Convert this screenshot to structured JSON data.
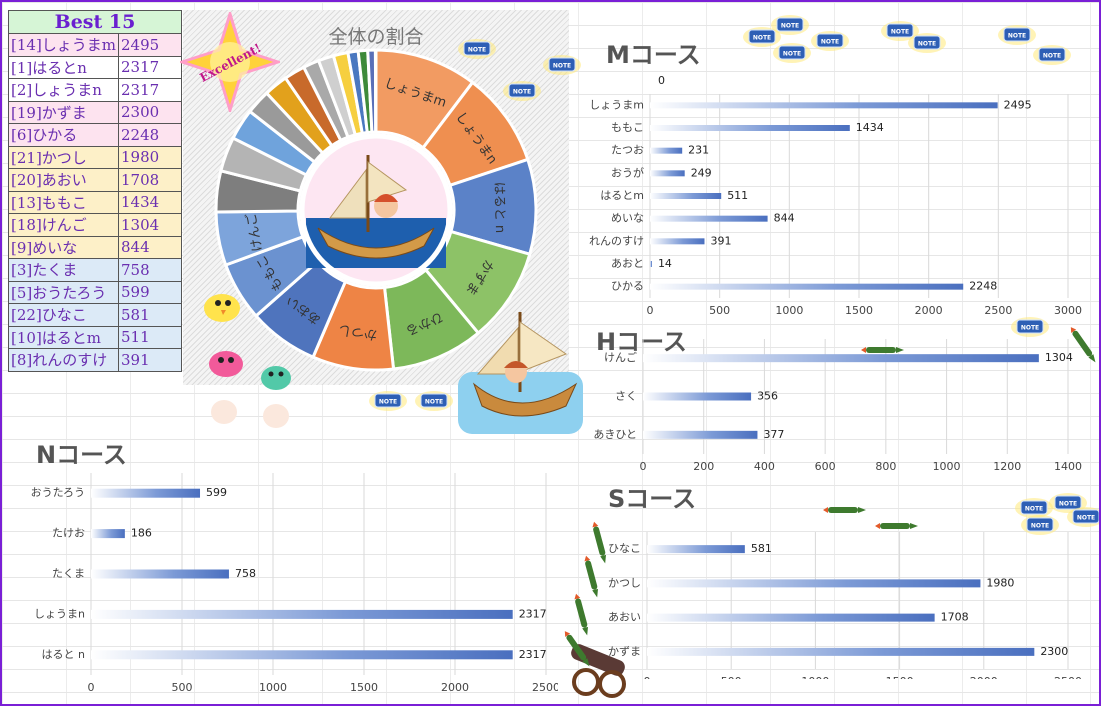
{
  "best": {
    "title": "Best 15",
    "rows": [
      {
        "name": "[14]しょうまm",
        "score": "2495",
        "tier": "tier1"
      },
      {
        "name": "[1]はるとn",
        "score": "2317",
        "tier": "tier1b"
      },
      {
        "name": "[2]しょうまn",
        "score": "2317",
        "tier": "tier1b"
      },
      {
        "name": "[19]かずま",
        "score": "2300",
        "tier": "tier1"
      },
      {
        "name": "[6]ひかる",
        "score": "2248",
        "tier": "tier1"
      },
      {
        "name": "[21]かつし",
        "score": "1980",
        "tier": "tier2"
      },
      {
        "name": "[20]あおい",
        "score": "1708",
        "tier": "tier2"
      },
      {
        "name": "[13]ももこ",
        "score": "1434",
        "tier": "tier2"
      },
      {
        "name": "[18]けんご",
        "score": "1304",
        "tier": "tier2"
      },
      {
        "name": "[9]めいな",
        "score": "844",
        "tier": "tier2"
      },
      {
        "name": "[3]たくま",
        "score": "758",
        "tier": "tier3"
      },
      {
        "name": "[5]おうたろう",
        "score": "599",
        "tier": "tier3"
      },
      {
        "name": "[22]ひなこ",
        "score": "581",
        "tier": "tier3"
      },
      {
        "name": "[10]はるとm",
        "score": "511",
        "tier": "tier3"
      },
      {
        "name": "[8]れんのすけ",
        "score": "391",
        "tier": "tier3"
      }
    ]
  },
  "sticker_text": {
    "excellent": "Excellent!",
    "note": "NOTE"
  },
  "colors": {
    "frame": "#7a1fd6",
    "bar": "#4a74c4",
    "orange": "#ee8f52",
    "blue": "#5b82c8",
    "green": "#8dc267"
  },
  "chart_data": [
    {
      "id": "donut",
      "type": "pie",
      "title": "全体の割合",
      "slices": [
        {
          "label": "しょうまm",
          "value": 2495,
          "color": "#f29b62"
        },
        {
          "label": "しょうまn",
          "value": 2317,
          "color": "#ef8f50"
        },
        {
          "label": "はると n",
          "value": 2317,
          "color": "#5b82c8"
        },
        {
          "label": "かずま",
          "value": 2300,
          "color": "#8dc267"
        },
        {
          "label": "ひかる",
          "value": 2248,
          "color": "#7db85a"
        },
        {
          "label": "かつし",
          "value": 1980,
          "color": "#ee8445"
        },
        {
          "label": "あおい",
          "value": 1708,
          "color": "#4f74bd"
        },
        {
          "label": "ももこ",
          "value": 1434,
          "color": "#6b92d0"
        },
        {
          "label": "けんご",
          "value": 1304,
          "color": "#7da4db"
        },
        {
          "label": "",
          "value": 1000,
          "color": "#7e7e7e"
        },
        {
          "label": "",
          "value": 844,
          "color": "#b4b4b4"
        },
        {
          "label": "",
          "value": 758,
          "color": "#6fa3dc"
        },
        {
          "label": "",
          "value": 599,
          "color": "#9a9a9a"
        },
        {
          "label": "",
          "value": 581,
          "color": "#e2a11c"
        },
        {
          "label": "",
          "value": 511,
          "color": "#c86a2b"
        },
        {
          "label": "",
          "value": 391,
          "color": "#a9a9a9"
        },
        {
          "label": "",
          "value": 377,
          "color": "#cfcfcf"
        },
        {
          "label": "",
          "value": 356,
          "color": "#f6cf3f"
        },
        {
          "label": "",
          "value": 249,
          "color": "#4a78c0"
        },
        {
          "label": "",
          "value": 231,
          "color": "#3e8a3a"
        },
        {
          "label": "",
          "value": 186,
          "color": "#5a6fb8"
        },
        {
          "label": "",
          "value": 14,
          "color": "#f0c040"
        }
      ]
    },
    {
      "id": "m",
      "type": "bar",
      "orientation": "horizontal",
      "title": "Mコース",
      "categories": [
        "しょうまm",
        "ももこ",
        "たつお",
        "おうが",
        "はるとm",
        "めいな",
        "れんのすけ",
        "あおと",
        "ひかる"
      ],
      "values": [
        2495,
        1434,
        231,
        249,
        511,
        844,
        391,
        14,
        2248
      ],
      "xlim": [
        0,
        3000
      ],
      "ticks": [
        0,
        500,
        1000,
        1500,
        2000,
        2500,
        3000
      ],
      "top_label": "0"
    },
    {
      "id": "h",
      "type": "bar",
      "orientation": "horizontal",
      "title": "Hコース",
      "categories": [
        "けんご",
        "さく",
        "あきひと"
      ],
      "values": [
        1304,
        356,
        377
      ],
      "xlim": [
        0,
        1400
      ],
      "ticks": [
        0,
        200,
        400,
        600,
        800,
        1000,
        1200,
        1400
      ]
    },
    {
      "id": "n",
      "type": "bar",
      "orientation": "horizontal",
      "title": "Nコース",
      "categories": [
        "おうたろう",
        "たけお",
        "たくま",
        "しょうまn",
        "はると n"
      ],
      "values": [
        599,
        186,
        758,
        2317,
        2317
      ],
      "xlim": [
        0,
        2500
      ],
      "ticks": [
        0,
        500,
        1000,
        1500,
        2000,
        2500
      ]
    },
    {
      "id": "s",
      "type": "bar",
      "orientation": "horizontal",
      "title": "Sコース",
      "categories": [
        "ひなこ",
        "かつし",
        "あおい",
        "かずま"
      ],
      "values": [
        581,
        1980,
        1708,
        2300
      ],
      "xlim": [
        0,
        2500
      ],
      "ticks": [
        0,
        500,
        1000,
        1500,
        2000,
        2500
      ]
    }
  ]
}
